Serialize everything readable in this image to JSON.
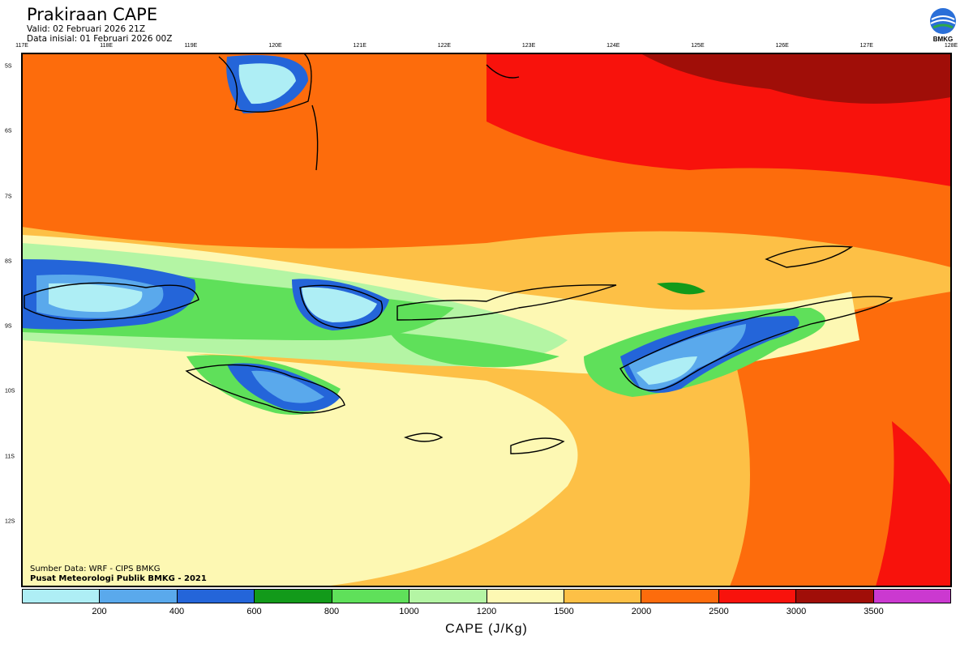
{
  "header": {
    "title": "Prakiraan CAPE",
    "valid": "Valid: 02 Februari 2026 21Z",
    "init": "Data inisial: 01 Februari 2026 00Z"
  },
  "logo": {
    "text": "BMKG"
  },
  "map": {
    "lon_labels": [
      "117E",
      "118E",
      "119E",
      "120E",
      "121E",
      "122E",
      "123E",
      "124E",
      "125E",
      "126E",
      "127E",
      "128E"
    ],
    "lat_labels": [
      "5S",
      "6S",
      "7S",
      "8S",
      "9S",
      "10S",
      "11S",
      "12S"
    ],
    "lon_range": [
      117,
      128
    ],
    "lat_range": [
      -4.8,
      -13
    ]
  },
  "credits": {
    "source": "Sumber Data: WRF - CIPS BMKG",
    "org": "Pusat Meteorologi Publik BMKG - 2021"
  },
  "colorbar": {
    "unit": "CAPE (J/Kg)",
    "colors": [
      "#aeeef5",
      "#5aa9ec",
      "#2465d9",
      "#129a1a",
      "#5fe05a",
      "#b4f5a4",
      "#fdf8b3",
      "#fdc046",
      "#fd6c0c",
      "#f8120c",
      "#a00e08",
      "#cb39d0"
    ],
    "labels": [
      "200",
      "400",
      "600",
      "800",
      "1000",
      "1200",
      "1500",
      "2000",
      "2500",
      "3000",
      "3500"
    ]
  }
}
